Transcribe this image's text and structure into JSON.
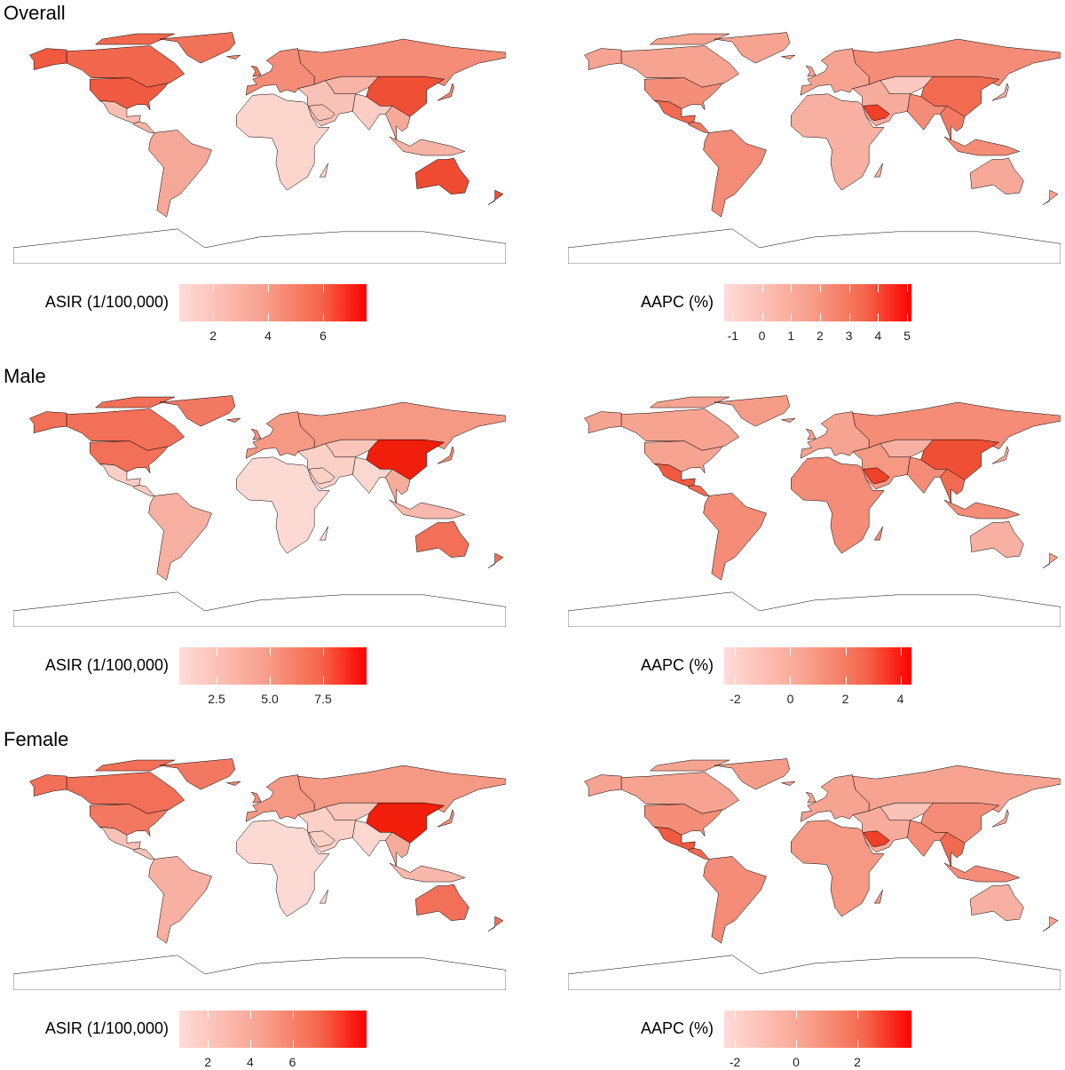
{
  "panels": [
    {
      "title": "Overall",
      "asir": {
        "legend_title": "ASIR (1/100,000)",
        "range": [
          0.77,
          7.58
        ],
        "ticks": [
          {
            "v": 2,
            "label": "2"
          },
          {
            "v": 4,
            "label": "4"
          },
          {
            "v": 6,
            "label": "6"
          }
        ],
        "fills": {
          "alaska": "#f05a40",
          "canada": "#f2684e",
          "canada_islands": "#f2684e",
          "greenland": "#f07258",
          "usa": "#f05a40",
          "mexico": "#f9bfb3",
          "central_america": "#f7b5a8",
          "south_america": "#f6a898",
          "iceland": "#f48c77",
          "uk": "#f2795f",
          "europe": "#f48c77",
          "russia": "#f48c77",
          "central_asia": "#f8b4a6",
          "china": "#ef4f35",
          "india": "#fbcdc4",
          "middle_east": "#f9c2b6",
          "saudi_arabia": "#f9c2b6",
          "africa": "#fcd5cd",
          "madagascar": "#fcd5cd",
          "se_asia": "#f7a999",
          "indonesia": "#f7b3a5",
          "japan": "#f28470",
          "australia": "#ef4a32",
          "new_zealand": "#ef4f35",
          "antarctica": "#ffffff"
        }
      },
      "aapc": {
        "legend_title": "AAPC (%)",
        "range": [
          -1.3,
          5.15
        ],
        "ticks": [
          {
            "v": -1,
            "label": "-1"
          },
          {
            "v": 0,
            "label": "0"
          },
          {
            "v": 1,
            "label": "1"
          },
          {
            "v": 2,
            "label": "2"
          },
          {
            "v": 3,
            "label": "3"
          },
          {
            "v": 4,
            "label": "4"
          },
          {
            "v": 5,
            "label": "5"
          }
        ],
        "fills": {
          "alaska": "#f6a391",
          "canada": "#f6a391",
          "canada_islands": "#f6a391",
          "greenland": "#f6a391",
          "usa": "#f48e78",
          "mexico": "#f26a50",
          "central_america": "#f27a62",
          "south_america": "#f48c77",
          "iceland": "#f6a391",
          "uk": "#f6a391",
          "europe": "#f6a391",
          "russia": "#f48c77",
          "central_asia": "#fbc9bf",
          "china": "#f26a50",
          "india": "#f48c77",
          "middle_east": "#f7ab9b",
          "saudi_arabia": "#ef4028",
          "africa": "#f7b0a1",
          "madagascar": "#f7b0a1",
          "se_asia": "#f27a62",
          "indonesia": "#f48c77",
          "japan": "#f7ab9b",
          "australia": "#f7a999",
          "new_zealand": "#f6a391",
          "antarctica": "#ffffff"
        }
      }
    },
    {
      "title": "Male",
      "asir": {
        "legend_title": "ASIR (1/100,000)",
        "range": [
          0.75,
          9.54
        ],
        "ticks": [
          {
            "v": 2.5,
            "label": "2.5"
          },
          {
            "v": 5.0,
            "label": "5.0"
          },
          {
            "v": 7.5,
            "label": "7.5"
          }
        ],
        "fills": {
          "alaska": "#f27058",
          "canada": "#f27058",
          "canada_islands": "#f27058",
          "greenland": "#f27862",
          "usa": "#f27058",
          "mexico": "#fbcdc4",
          "central_america": "#fbc9bf",
          "south_america": "#f7b0a1",
          "iceland": "#f48c77",
          "uk": "#f48c77",
          "europe": "#f59884",
          "russia": "#f59884",
          "central_asia": "#fbc5ba",
          "china": "#f01e0a",
          "india": "#fcd7cf",
          "middle_east": "#fbd0c7",
          "saudi_arabia": "#fbd0c7",
          "africa": "#fcdad3",
          "madagascar": "#fcdad3",
          "se_asia": "#f7ab9b",
          "indonesia": "#f8b8ab",
          "japan": "#f48c77",
          "australia": "#f27058",
          "new_zealand": "#f27058",
          "antarctica": "#ffffff"
        }
      },
      "aapc": {
        "legend_title": "AAPC (%)",
        "range": [
          -2.4,
          4.4
        ],
        "ticks": [
          {
            "v": -2,
            "label": "-2"
          },
          {
            "v": 0,
            "label": "0"
          },
          {
            "v": 2,
            "label": "2"
          },
          {
            "v": 4,
            "label": "4"
          }
        ],
        "fills": {
          "alaska": "#f6a391",
          "canada": "#f6a391",
          "canada_islands": "#f6a391",
          "greenland": "#f59c89",
          "usa": "#f6a391",
          "mexico": "#f05a40",
          "central_america": "#f26a50",
          "south_america": "#f48c77",
          "iceland": "#f6a391",
          "uk": "#f6a391",
          "europe": "#f6a391",
          "russia": "#f48c77",
          "central_asia": "#f7b0a1",
          "china": "#ef4f35",
          "india": "#f48c77",
          "middle_east": "#f59884",
          "saudi_arabia": "#ef4028",
          "africa": "#f48c77",
          "madagascar": "#f48c77",
          "se_asia": "#f26a50",
          "indonesia": "#f48c77",
          "japan": "#f7ab9b",
          "australia": "#f7b0a1",
          "new_zealand": "#f6a391",
          "antarctica": "#ffffff"
        }
      }
    },
    {
      "title": "Female",
      "asir": {
        "legend_title": "ASIR (1/100,000)",
        "range": [
          0.65,
          9.5
        ],
        "ticks": [
          {
            "v": 2,
            "label": "2"
          },
          {
            "v": 4,
            "label": "4"
          },
          {
            "v": 6,
            "label": "6"
          }
        ],
        "fills": {
          "alaska": "#f27058",
          "canada": "#f27058",
          "canada_islands": "#f27058",
          "greenland": "#f27862",
          "usa": "#f27862",
          "mexico": "#f9c2b6",
          "central_america": "#f9c2b6",
          "south_america": "#f7b0a1",
          "iceland": "#f48c77",
          "uk": "#f48c77",
          "europe": "#f59884",
          "russia": "#f59884",
          "central_asia": "#fbc5ba",
          "china": "#f01e0a",
          "india": "#fcd7cf",
          "middle_east": "#fbd0c7",
          "saudi_arabia": "#fbd0c7",
          "africa": "#fcdad3",
          "madagascar": "#fcdad3",
          "se_asia": "#f7ab9b",
          "indonesia": "#f8b8ab",
          "japan": "#f48c77",
          "australia": "#f27058",
          "new_zealand": "#f27058",
          "antarctica": "#ffffff"
        }
      },
      "aapc": {
        "legend_title": "AAPC (%)",
        "range": [
          -2.35,
          3.77
        ],
        "ticks": [
          {
            "v": -2,
            "label": "-2"
          },
          {
            "v": 0,
            "label": "0"
          },
          {
            "v": 2,
            "label": "2"
          }
        ],
        "fills": {
          "alaska": "#f6a391",
          "canada": "#f6a391",
          "canada_islands": "#f6a391",
          "greenland": "#f59c89",
          "usa": "#f48e78",
          "mexico": "#f05a40",
          "central_america": "#f26a50",
          "south_america": "#f48c77",
          "iceland": "#f6a391",
          "uk": "#f6a391",
          "europe": "#f6a391",
          "russia": "#f6a391",
          "central_asia": "#f9c2b6",
          "china": "#f48c77",
          "india": "#f48c77",
          "middle_east": "#f7ab9b",
          "saudi_arabia": "#ef4028",
          "africa": "#f59884",
          "madagascar": "#f59884",
          "se_asia": "#f26a50",
          "indonesia": "#f48c77",
          "japan": "#f7ab9b",
          "australia": "#f7b0a1",
          "new_zealand": "#f6a391",
          "antarctica": "#ffffff"
        }
      }
    }
  ]
}
